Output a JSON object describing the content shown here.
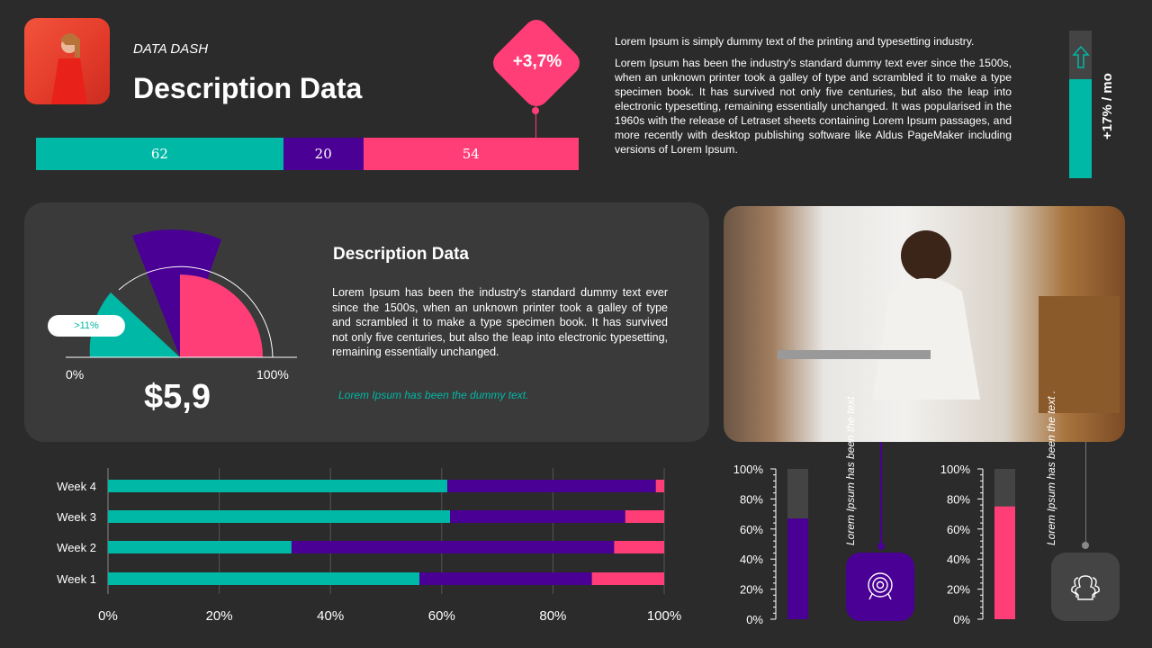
{
  "header": {
    "kicker": "DATA DASH",
    "title": "Description Data",
    "badge": "+3,7%"
  },
  "stack_bar": [
    {
      "value": 62,
      "color": "#00b8a6"
    },
    {
      "value": 20,
      "color": "#4a0094"
    },
    {
      "value": 54,
      "color": "#ff3e78"
    }
  ],
  "paragraphs": [
    "Lorem Ipsum is simply dummy text of the printing and typesetting industry.",
    "Lorem Ipsum has been the industry's standard dummy text ever since the 1500s, when an unknown printer took a galley of type and scrambled it to make a type specimen book. It has survived not only five centuries, but also the leap into electronic typesetting, remaining essentially unchanged. It was popularised in the 1960s with the release of Letraset sheets containing Lorem Ipsum passages, and more recently with desktop publishing software like Aldus PageMaker including versions of Lorem Ipsum."
  ],
  "growth": {
    "label": "+17% / mo",
    "fill": 0.67,
    "icon": "arrow-up-icon"
  },
  "card": {
    "title": "Description Data",
    "text": "Lorem Ipsum has been the industry's standard dummy text ever since the 1500s, when an unknown printer took a galley of type and scrambled it to make a type specimen book. It has survived not only five centuries, but also the leap into electronic typesetting, remaining essentially unchanged.",
    "note": "Lorem Ipsum has been the dummy text.",
    "price": "$5,9",
    "gauge_min": "0%",
    "gauge_max": "100%",
    "gauge_tag": ">11%"
  },
  "colors": {
    "teal": "#00b8a6",
    "purple": "#4a0094",
    "pink": "#ff3e78"
  },
  "chart_data": [
    {
      "type": "bar",
      "orientation": "horizontal",
      "stacked": true,
      "categories": [
        "Week 1",
        "Week 2",
        "Week 3",
        "Week 4"
      ],
      "series": [
        {
          "values": [
            56,
            33,
            61.5,
            61
          ],
          "color": "#00b8a6"
        },
        {
          "values": [
            31,
            58,
            31.5,
            37.5
          ],
          "color": "#4a0094"
        },
        {
          "values": [
            13,
            9,
            7,
            1.5
          ],
          "color": "#ff3e78"
        }
      ],
      "xlim": [
        0,
        100
      ],
      "xticks": [
        "0%",
        "20%",
        "40%",
        "60%",
        "80%",
        "100%"
      ],
      "grid": true
    },
    {
      "type": "bar",
      "values": [
        67
      ],
      "color": "#4a0094",
      "ylim": [
        0,
        100
      ],
      "yticks": [
        "0%",
        "20%",
        "40%",
        "60%",
        "80%",
        "100%"
      ],
      "note": "Lorem Ipsum has been the text .",
      "icon": "target-icon"
    },
    {
      "type": "bar",
      "values": [
        75
      ],
      "color": "#ff3e78",
      "ylim": [
        0,
        100
      ],
      "yticks": [
        "0%",
        "20%",
        "40%",
        "60%",
        "80%",
        "100%"
      ],
      "note": "Lorem Ipsum has been the text .",
      "icon": "users-icon"
    }
  ]
}
